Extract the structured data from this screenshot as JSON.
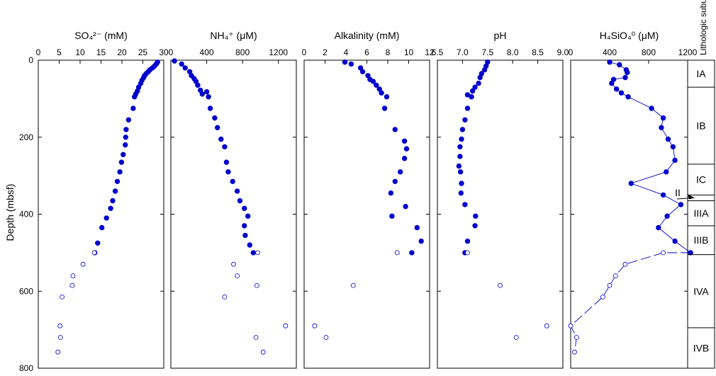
{
  "chart_data": {
    "type": "scatter",
    "y_axis": {
      "label": "Depth (mbsf)",
      "range": [
        800,
        0
      ],
      "ticks": [
        "0",
        "200",
        "400",
        "600",
        "800"
      ]
    },
    "panels": [
      {
        "title": "SO₄²⁻ (mM)",
        "xlim": [
          0,
          30
        ],
        "ticks": [
          "0",
          "5",
          "10",
          "15",
          "20",
          "25",
          "30"
        ],
        "tick_values": [
          0,
          5,
          10,
          15,
          20,
          25,
          30
        ],
        "series": [
          {
            "style": "filled",
            "points": [
              [
                28.5,
                5
              ],
              [
                28.2,
                10
              ],
              [
                27.8,
                15
              ],
              [
                27.3,
                20
              ],
              [
                26.7,
                25
              ],
              [
                26.3,
                30
              ],
              [
                25.8,
                35
              ],
              [
                25.4,
                40
              ],
              [
                25.2,
                45
              ],
              [
                24.8,
                52
              ],
              [
                24.5,
                60
              ],
              [
                24.0,
                70
              ],
              [
                23.7,
                80
              ],
              [
                23.3,
                88
              ],
              [
                23.0,
                95
              ],
              [
                22.7,
                125
              ],
              [
                21.6,
                155
              ],
              [
                21.0,
                180
              ],
              [
                20.9,
                200
              ],
              [
                20.8,
                220
              ],
              [
                20.3,
                245
              ],
              [
                19.9,
                265
              ],
              [
                19.5,
                290
              ],
              [
                18.9,
                315
              ],
              [
                18.4,
                340
              ],
              [
                17.8,
                365
              ],
              [
                17.3,
                385
              ],
              [
                16.3,
                410
              ],
              [
                15.2,
                435
              ],
              [
                14.2,
                475
              ],
              [
                13.5,
                500
              ]
            ]
          },
          {
            "style": "open",
            "points": [
              [
                13.4,
                500
              ],
              [
                10.7,
                530
              ],
              [
                8.3,
                560
              ],
              [
                8.1,
                585
              ],
              [
                5.7,
                615
              ],
              [
                5.2,
                690
              ],
              [
                5.3,
                720
              ],
              [
                4.7,
                758
              ]
            ]
          }
        ]
      },
      {
        "title": "NH₄⁺ (μM)",
        "xlim": [
          0,
          1400
        ],
        "ticks": [
          "0",
          "400",
          "800",
          "1200"
        ],
        "tick_values": [
          0,
          400,
          800,
          1200
        ],
        "series": [
          {
            "style": "filled",
            "points": [
              [
                40,
                2
              ],
              [
                120,
                10
              ],
              [
                160,
                20
              ],
              [
                210,
                30
              ],
              [
                230,
                40
              ],
              [
                260,
                48
              ],
              [
                280,
                55
              ],
              [
                300,
                65
              ],
              [
                330,
                78
              ],
              [
                350,
                88
              ],
              [
                400,
                82
              ],
              [
                420,
                95
              ],
              [
                440,
                125
              ],
              [
                490,
                150
              ],
              [
                520,
                175
              ],
              [
                560,
                205
              ],
              [
                600,
                225
              ],
              [
                620,
                265
              ],
              [
                640,
                290
              ],
              [
                690,
                315
              ],
              [
                740,
                340
              ],
              [
                770,
                365
              ],
              [
                820,
                385
              ],
              [
                860,
                405
              ],
              [
                820,
                430
              ],
              [
                830,
                455
              ],
              [
                880,
                480
              ],
              [
                920,
                500
              ]
            ]
          },
          {
            "style": "open",
            "points": [
              [
                970,
                500
              ],
              [
                700,
                530
              ],
              [
                740,
                560
              ],
              [
                960,
                585
              ],
              [
                600,
                615
              ],
              [
                1280,
                690
              ],
              [
                950,
                720
              ],
              [
                1030,
                758
              ]
            ]
          }
        ]
      },
      {
        "title": "Alkalinity (mM)",
        "xlim": [
          0,
          12
        ],
        "ticks": [
          "0",
          "2",
          "4",
          "6",
          "8",
          "10",
          "12"
        ],
        "tick_values": [
          0,
          2,
          4,
          6,
          8,
          10,
          12
        ],
        "series": [
          {
            "style": "filled",
            "points": [
              [
                3.9,
                5
              ],
              [
                4.5,
                10
              ],
              [
                5.4,
                20
              ],
              [
                5.6,
                30
              ],
              [
                6.1,
                40
              ],
              [
                6.3,
                50
              ],
              [
                6.6,
                55
              ],
              [
                6.9,
                65
              ],
              [
                7.2,
                75
              ],
              [
                7.4,
                85
              ],
              [
                7.9,
                95
              ],
              [
                7.7,
                125
              ],
              [
                8.7,
                180
              ],
              [
                9.6,
                210
              ],
              [
                9.8,
                230
              ],
              [
                9.6,
                255
              ],
              [
                9.2,
                290
              ],
              [
                8.7,
                315
              ],
              [
                8.3,
                345
              ],
              [
                9.7,
                380
              ],
              [
                8.4,
                405
              ],
              [
                10.8,
                435
              ],
              [
                11.2,
                470
              ],
              [
                10.3,
                500
              ]
            ]
          },
          {
            "style": "open",
            "points": [
              [
                8.9,
                500
              ],
              [
                4.7,
                585
              ],
              [
                1.0,
                690
              ],
              [
                2.1,
                720
              ]
            ]
          }
        ]
      },
      {
        "title": "pH",
        "xlim": [
          6.5,
          9.0
        ],
        "ticks": [
          "6.5",
          "7.0",
          "7.5",
          "8.0",
          "8.5",
          "9.0"
        ],
        "tick_values": [
          6.5,
          7.0,
          7.5,
          8.0,
          8.5,
          9.0
        ],
        "series": [
          {
            "style": "filled",
            "points": [
              [
                7.5,
                5
              ],
              [
                7.47,
                15
              ],
              [
                7.44,
                25
              ],
              [
                7.38,
                35
              ],
              [
                7.35,
                45
              ],
              [
                7.32,
                60
              ],
              [
                7.25,
                70
              ],
              [
                7.2,
                80
              ],
              [
                7.1,
                90
              ],
              [
                7.18,
                95
              ],
              [
                7.1,
                125
              ],
              [
                7.05,
                155
              ],
              [
                7.0,
                180
              ],
              [
                6.98,
                205
              ],
              [
                6.95,
                225
              ],
              [
                6.95,
                250
              ],
              [
                6.93,
                275
              ],
              [
                6.96,
                290
              ],
              [
                6.98,
                320
              ],
              [
                6.97,
                345
              ],
              [
                7.05,
                375
              ],
              [
                7.26,
                405
              ],
              [
                7.25,
                430
              ],
              [
                7.1,
                470
              ],
              [
                7.05,
                500
              ]
            ]
          },
          {
            "style": "open",
            "points": [
              [
                7.1,
                500
              ],
              [
                7.75,
                585
              ],
              [
                8.68,
                690
              ],
              [
                8.07,
                720
              ]
            ]
          }
        ]
      },
      {
        "title": "H₄SiO₄⁰ (μM)",
        "xlim": [
          0,
          1200
        ],
        "ticks": [
          "0",
          "400",
          "800",
          "1200"
        ],
        "tick_values": [
          0,
          400,
          800,
          1200
        ],
        "series": [
          {
            "style": "filled-line",
            "points": [
              [
                400,
                5
              ],
              [
                500,
                12
              ],
              [
                570,
                25
              ],
              [
                580,
                32
              ],
              [
                560,
                45
              ],
              [
                440,
                50
              ],
              [
                420,
                60
              ],
              [
                470,
                75
              ],
              [
                520,
                85
              ],
              [
                590,
                95
              ],
              [
                830,
                125
              ],
              [
                950,
                150
              ],
              [
                930,
                175
              ],
              [
                1000,
                205
              ],
              [
                1050,
                225
              ],
              [
                1070,
                260
              ],
              [
                980,
                290
              ],
              [
                620,
                320
              ],
              [
                950,
                350
              ],
              [
                1130,
                375
              ],
              [
                990,
                405
              ],
              [
                900,
                435
              ],
              [
                1070,
                470
              ],
              [
                1230,
                500
              ]
            ]
          },
          {
            "style": "open",
            "points": [
              [
                950,
                500
              ],
              [
                560,
                530
              ],
              [
                460,
                560
              ],
              [
                400,
                585
              ],
              [
                330,
                615
              ],
              [
                0,
                690
              ],
              [
                60,
                720
              ],
              [
                40,
                758
              ]
            ]
          }
        ]
      }
    ],
    "lithology": {
      "label": "Lithologic subunits",
      "units": [
        {
          "name": "IA",
          "top": 0,
          "bottom": 70
        },
        {
          "name": "IB",
          "top": 70,
          "bottom": 270
        },
        {
          "name": "IC",
          "top": 270,
          "bottom": 350
        },
        {
          "name": "II",
          "top": 350,
          "bottom": 365
        },
        {
          "name": "IIIA",
          "top": 365,
          "bottom": 430
        },
        {
          "name": "IIIB",
          "top": 430,
          "bottom": 505
        },
        {
          "name": "IVA",
          "top": 505,
          "bottom": 695
        },
        {
          "name": "IVB",
          "top": 695,
          "bottom": 800
        }
      ]
    },
    "colors": {
      "data": "#0000CC",
      "axes": "#000000"
    }
  }
}
